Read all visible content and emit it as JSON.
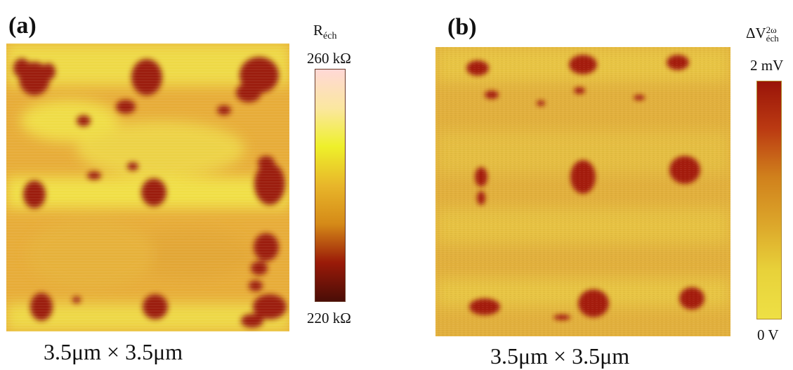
{
  "panel_a": {
    "label": "(a)",
    "scale_text": "3.5μm × 3.5μm",
    "colorbar": {
      "title_main": "R",
      "title_sub": "éch",
      "max_label": "260 kΩ",
      "min_label": "220 kΩ",
      "gradient_top_to_bottom": [
        "#ffd8d6",
        "#fbe7a0",
        "#eef02a",
        "#e8b62a",
        "#d58a18",
        "#9a1a08",
        "#4a0d07"
      ]
    },
    "map_colors": {
      "base": "#e8b03a",
      "light": "#f0e94a",
      "dark": "#9c1a0d"
    }
  },
  "panel_b": {
    "label": "(b)",
    "scale_text": "3.5μm × 3.5μm",
    "colorbar": {
      "title_main": "ΔV",
      "title_sup": "2ω",
      "title_sub": "éch",
      "max_label": "2 mV",
      "min_label": "0 V",
      "gradient_top_to_bottom": [
        "#9a1409",
        "#bb3a12",
        "#d0801c",
        "#dca62a",
        "#e8d23a",
        "#eee045"
      ]
    },
    "map_colors": {
      "base": "#e3b43f",
      "light": "#eed64a",
      "dark": "#a9210f"
    }
  }
}
